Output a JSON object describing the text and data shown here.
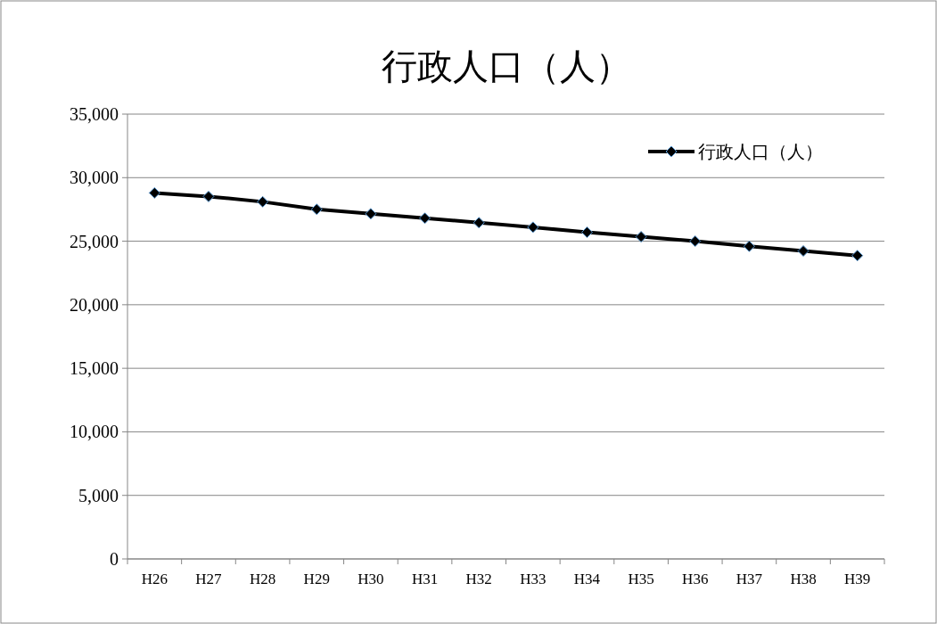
{
  "chart_data": {
    "type": "line",
    "title": "行政人口（人）",
    "categories": [
      "H26",
      "H27",
      "H28",
      "H29",
      "H30",
      "H31",
      "H32",
      "H33",
      "H34",
      "H35",
      "H36",
      "H37",
      "H38",
      "H39"
    ],
    "series": [
      {
        "name": "行政人口（人）",
        "color": "#000000",
        "values": [
          28800,
          28520,
          28100,
          27510,
          27160,
          26810,
          26460,
          26100,
          25700,
          25350,
          25000,
          24600,
          24230,
          23870
        ]
      }
    ],
    "ylim": [
      0,
      35000
    ],
    "yticks": [
      0,
      {
        "value": 5000,
        "label": "5,000"
      },
      {
        "value": 10000,
        "label": "10,000"
      },
      {
        "value": 15000,
        "label": "15,000"
      },
      {
        "value": 20000,
        "label": "20,000"
      },
      {
        "value": 25000,
        "label": "25,000"
      },
      {
        "value": 30000,
        "label": "30,000"
      },
      {
        "value": 35000,
        "label": "35,000"
      }
    ],
    "grid": "y",
    "legend": "top right",
    "marker": "diamond",
    "line_style": "solid"
  }
}
